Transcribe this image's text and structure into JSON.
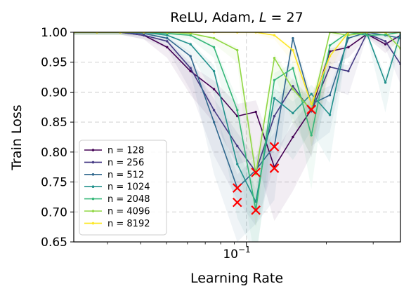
{
  "chart_data": {
    "type": "line",
    "title_prefix": "ReLU, Adam, ",
    "title_var": "L",
    "title_suffix": " = 27",
    "xlabel": "Learning Rate",
    "ylabel": "Train Loss",
    "xscale": "log",
    "xlim": [
      0.0224,
      0.38
    ],
    "ylim": [
      0.65,
      1.0
    ],
    "x_tick_label": "10",
    "x_tick_label_exp": "−1",
    "y_ticks": [
      "0.65",
      "0.70",
      "0.75",
      "0.80",
      "0.85",
      "0.90",
      "0.95",
      "1.00"
    ],
    "grid": true,
    "legend_position": "lower-left",
    "x": [
      0.0224,
      0.0274,
      0.0335,
      0.0411,
      0.0503,
      0.0616,
      0.0755,
      0.0924,
      0.1085,
      0.1274,
      0.1496,
      0.1756,
      0.2061,
      0.242,
      0.2841,
      0.3335,
      0.38
    ],
    "series": [
      {
        "name": "n = 128",
        "color": "#440154",
        "values": [
          1.0,
          1.0,
          1.0,
          0.995,
          0.975,
          0.935,
          0.905,
          0.86,
          0.867,
          0.775,
          0.825,
          0.871,
          0.968,
          0.975,
          0.997,
          0.98,
          0.995
        ]
      },
      {
        "name": "n = 256",
        "color": "#443983",
        "values": [
          1.0,
          1.0,
          1.0,
          0.995,
          0.985,
          0.94,
          0.87,
          0.81,
          0.767,
          0.86,
          0.91,
          0.868,
          0.942,
          0.935,
          0.998,
          0.985,
          0.947
        ]
      },
      {
        "name": "n = 512",
        "color": "#31688e",
        "values": [
          1.0,
          1.0,
          1.0,
          0.998,
          0.99,
          0.96,
          0.85,
          0.74,
          0.77,
          0.81,
          0.99,
          0.88,
          0.895,
          0.99,
          1.0,
          0.995,
          0.99
        ]
      },
      {
        "name": "n = 1024",
        "color": "#21918c",
        "values": [
          1.0,
          1.0,
          1.0,
          1.0,
          0.995,
          0.98,
          0.935,
          0.78,
          0.717,
          0.89,
          0.865,
          0.897,
          0.862,
          1.0,
          0.998,
          0.916,
          0.998
        ]
      },
      {
        "name": "n = 2048",
        "color": "#35b779",
        "values": [
          1.0,
          1.0,
          1.0,
          1.0,
          0.998,
          0.995,
          0.975,
          0.87,
          0.703,
          0.92,
          0.94,
          0.828,
          0.978,
          1.0,
          0.995,
          0.996,
          1.0
        ]
      },
      {
        "name": "n = 4096",
        "color": "#90d743",
        "values": [
          1.0,
          1.0,
          1.0,
          1.0,
          1.0,
          0.998,
          0.99,
          0.97,
          0.763,
          0.957,
          0.905,
          0.87,
          1.0,
          0.995,
          1.0,
          1.0,
          0.973
        ]
      },
      {
        "name": "n = 8192",
        "color": "#fde725",
        "values": [
          1.0,
          1.0,
          1.0,
          1.0,
          1.0,
          1.0,
          1.0,
          1.0,
          1.0,
          0.995,
          0.97,
          0.88,
          0.96,
          1.0,
          1.0,
          1.0,
          1.0
        ]
      }
    ],
    "best_markers": [
      {
        "x": 0.0924,
        "y": 0.74
      },
      {
        "x": 0.0924,
        "y": 0.716
      },
      {
        "x": 0.1085,
        "y": 0.766
      },
      {
        "x": 0.1085,
        "y": 0.703
      },
      {
        "x": 0.1274,
        "y": 0.809
      },
      {
        "x": 0.1274,
        "y": 0.773
      },
      {
        "x": 0.1756,
        "y": 0.871
      }
    ],
    "marker_color": "#ff0000"
  }
}
